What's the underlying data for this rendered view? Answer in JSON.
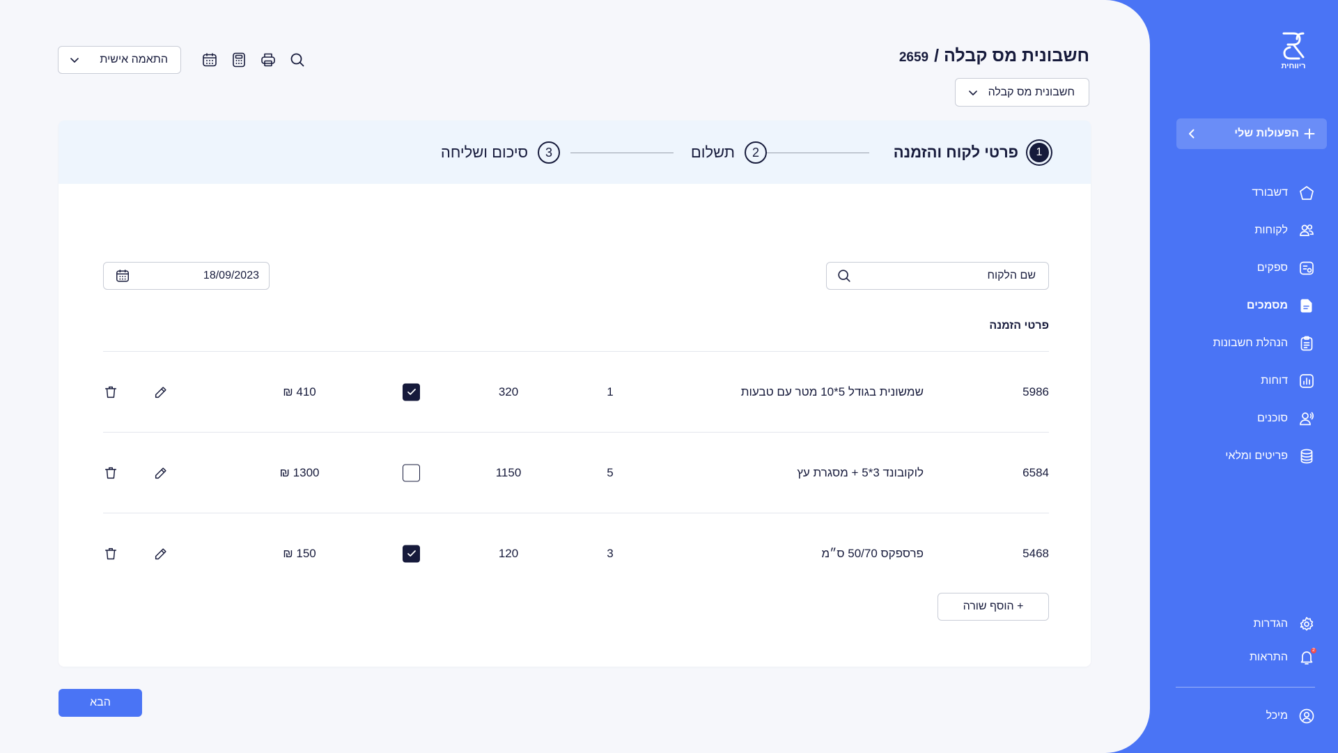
{
  "header": {
    "title": "חשבונית מס קבלה /",
    "doc_number": "2659",
    "doc_type_select": "חשבונית מס קבלה",
    "custom_select": "התאמה אישית"
  },
  "toolbar_icons": [
    "search-icon",
    "print-icon",
    "calculator-icon",
    "calendar-icon"
  ],
  "stepper": {
    "steps": [
      {
        "number": "1",
        "label": "פרטי לקוח והזמנה",
        "active": true
      },
      {
        "number": "2",
        "label": "תשלום",
        "active": false
      },
      {
        "number": "3",
        "label": "סיכום ושליחה",
        "active": false
      }
    ]
  },
  "form": {
    "customer_placeholder": "שם הלקוח",
    "date_value": "18/09/2023",
    "section_title": "פרטי הזמנה"
  },
  "order_rows": [
    {
      "sku": "5986",
      "description": "שמשונית בגודל 5*10 מטר עם טבעות",
      "quantity": "1",
      "price": "320",
      "checked": true,
      "total": "410 ₪"
    },
    {
      "sku": "6584",
      "description": "לוקובונד 3*5 + מסגרת עץ",
      "quantity": "5",
      "price": "1150",
      "checked": false,
      "total": "1300 ₪"
    },
    {
      "sku": "5468",
      "description": "פרספקס 50/70 ס״מ",
      "quantity": "3",
      "price": "120",
      "checked": true,
      "total": "150 ₪"
    }
  ],
  "add_row_label": "+ הוסף שורה",
  "next_label": "הבא",
  "sidebar": {
    "logo_text": "ריווחית",
    "actions_label": "הפעולות שלי",
    "items": [
      {
        "label": "דשבורד",
        "icon": "home-icon",
        "active": false
      },
      {
        "label": "לקוחות",
        "icon": "users-icon",
        "active": false
      },
      {
        "label": "ספקים",
        "icon": "supplier-icon",
        "active": false
      },
      {
        "label": "מסמכים",
        "icon": "document-icon",
        "active": true
      },
      {
        "label": "הנהלת חשבונות",
        "icon": "clipboard-icon",
        "active": false
      },
      {
        "label": "דוחות",
        "icon": "chart-icon",
        "active": false
      },
      {
        "label": "סוכנים",
        "icon": "agent-icon",
        "active": false
      },
      {
        "label": "פריטים ומלאי",
        "icon": "database-icon",
        "active": false
      }
    ],
    "settings_label": "הגדרות",
    "notifications_label": "התראות",
    "notifications_count": "2",
    "user_name": "מיכל"
  },
  "colors": {
    "brand": "#4a74f5",
    "navy": "#161a3b",
    "stepper_bg": "#eef5fd",
    "page_bg": "#f6f7fb"
  }
}
